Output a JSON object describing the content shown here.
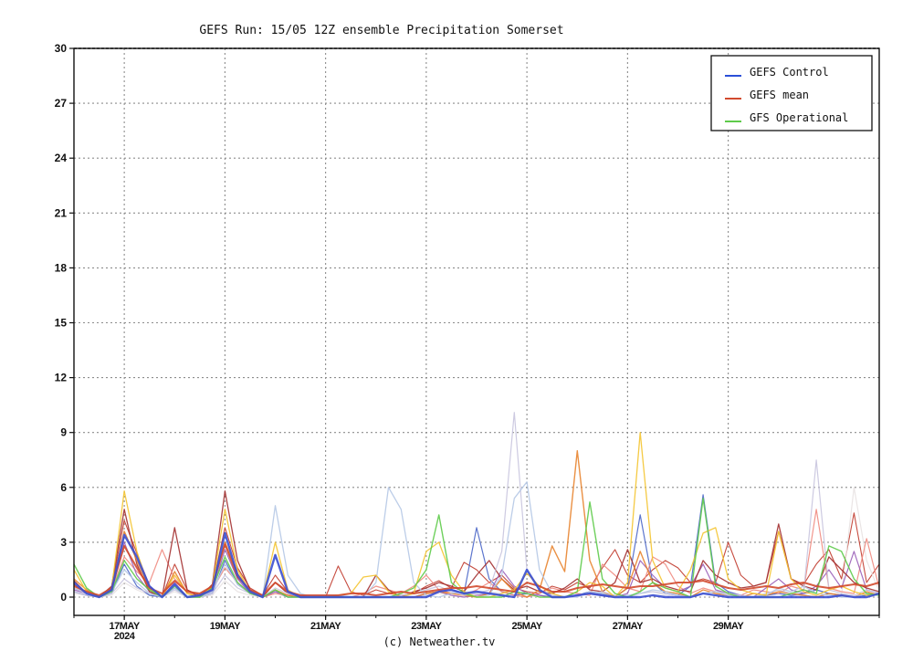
{
  "chart_data": {
    "type": "line",
    "title": "GEFS Run: 15/05 12Z ensemble Precipitation Somerset",
    "credit": "(c) Netweather.tv",
    "ylim": [
      0,
      30
    ],
    "yticks": [
      "0",
      "3",
      "6",
      "9",
      "12",
      "15",
      "18",
      "21",
      "24",
      "27",
      "30"
    ],
    "xlim": [
      -1,
      15
    ],
    "xticks": [
      {
        "x": 0,
        "label": "17MAY",
        "sublabel": "2024"
      },
      {
        "x": 2,
        "label": "19MAY",
        "sublabel": ""
      },
      {
        "x": 4,
        "label": "21MAY",
        "sublabel": ""
      },
      {
        "x": 6,
        "label": "23MAY",
        "sublabel": ""
      },
      {
        "x": 8,
        "label": "25MAY",
        "sublabel": ""
      },
      {
        "x": 10,
        "label": "27MAY",
        "sublabel": ""
      },
      {
        "x": 12,
        "label": "29MAY",
        "sublabel": ""
      }
    ],
    "grid": true,
    "legend_position": "top-right",
    "legend": [
      {
        "name": "GEFS Control",
        "color": "#2b4fd8"
      },
      {
        "name": "GEFS mean",
        "color": "#d24a2e"
      },
      {
        "name": "GFS Operational",
        "color": "#5ecb4a"
      }
    ],
    "x_spacing_days": 0.25,
    "series": [
      {
        "color": "#3b4fd0",
        "width": 2.4,
        "values": [
          0.8,
          0.2,
          0,
          0.4,
          3.4,
          2.2,
          0.6,
          0,
          0.7,
          0,
          0.1,
          0.4,
          3.5,
          1.2,
          0.3,
          0,
          2.3,
          0.3,
          0,
          0,
          0,
          0,
          0,
          0,
          0,
          0,
          0,
          0,
          0,
          0.3,
          0.4,
          0.2,
          0.3,
          0.2,
          0.1,
          0,
          1.5,
          0.4,
          0,
          0,
          0.1,
          0.2,
          0.1,
          0,
          0,
          0,
          0.1,
          0,
          0,
          0,
          0.2,
          0.1,
          0,
          0,
          0,
          0,
          0,
          0,
          0,
          0,
          0,
          0.1,
          0,
          0,
          0.2
        ]
      },
      {
        "color": "#d24a2e",
        "width": 2.0,
        "values": [
          0.6,
          0.3,
          0.1,
          0.5,
          2.8,
          1.6,
          0.5,
          0.2,
          0.9,
          0.3,
          0.2,
          0.6,
          2.9,
          1.1,
          0.4,
          0.1,
          0.8,
          0.3,
          0.1,
          0.1,
          0.1,
          0.1,
          0.2,
          0.2,
          0.1,
          0.2,
          0.3,
          0.2,
          0.3,
          0.4,
          0.5,
          0.5,
          0.6,
          0.5,
          0.4,
          0.3,
          0.8,
          0.6,
          0.3,
          0.3,
          0.5,
          0.6,
          0.7,
          0.6,
          0.5,
          0.6,
          0.6,
          0.7,
          0.8,
          0.8,
          0.9,
          0.7,
          0.5,
          0.4,
          0.5,
          0.6,
          0.5,
          0.7,
          0.8,
          0.6,
          0.5,
          0.6,
          0.7,
          0.6,
          0.8
        ]
      },
      {
        "color": "#5ecb4a",
        "width": 1.4,
        "values": [
          1.8,
          0.5,
          0,
          0.3,
          2.0,
          1.0,
          0.4,
          0,
          0.6,
          0,
          0,
          0.5,
          2.2,
          0.8,
          0.2,
          0,
          0.4,
          0,
          0,
          0,
          0,
          0,
          0,
          0,
          0,
          0,
          0.2,
          0.5,
          1.5,
          4.5,
          0.8,
          0.2,
          0,
          0,
          0,
          0.3,
          0.2,
          0,
          0,
          0,
          0.3,
          5.2,
          1.0,
          0.2,
          0,
          0.3,
          0.8,
          0.5,
          0.3,
          0,
          5.4,
          0.6,
          0.2,
          0,
          0,
          0,
          0,
          0.2,
          0.4,
          0.2,
          2.8,
          2.5,
          1.0,
          0.2,
          0.1
        ]
      },
      {
        "color": "#f4c430",
        "width": 1.3,
        "values": [
          1.5,
          0.3,
          0,
          0.5,
          5.8,
          2.5,
          0.4,
          0,
          1.2,
          0.2,
          0,
          0.6,
          4.8,
          1.5,
          0.3,
          0,
          3.0,
          0.4,
          0,
          0,
          0,
          0.1,
          0.2,
          1.1,
          1.2,
          0.3,
          0,
          0.2,
          2.5,
          3.0,
          1.2,
          0.3,
          0,
          0,
          0.2,
          0.4,
          1.3,
          0.6,
          0.2,
          0,
          0.3,
          0.8,
          0.6,
          0,
          0.8,
          9.0,
          2.0,
          0.5,
          0.3,
          1.5,
          3.5,
          3.8,
          1.0,
          0.4,
          0.2,
          0.1,
          3.6,
          1.0,
          0.3,
          0.1,
          0.4,
          0.6,
          0.3,
          0.1,
          0.2
        ]
      },
      {
        "color": "#b5c8e6",
        "width": 1.3,
        "values": [
          0.5,
          0.2,
          0,
          0.3,
          1.5,
          0.8,
          0.2,
          0,
          0.5,
          0,
          0,
          0.3,
          1.8,
          0.7,
          0.2,
          0,
          5.0,
          1.2,
          0.2,
          0,
          0,
          0.1,
          0,
          0,
          0.8,
          6.0,
          4.8,
          0.8,
          0.1,
          0,
          0.2,
          0.3,
          0,
          0.1,
          1.2,
          5.4,
          6.3,
          1.5,
          0.2,
          0,
          0,
          0.3,
          0.2,
          0,
          0.1,
          0.2,
          0.4,
          0.3,
          0.1,
          0,
          0.2,
          0.3,
          0.1,
          0,
          0,
          0.1,
          0.5,
          0.3,
          0.6,
          0.2,
          0.1,
          0,
          0,
          0.2,
          0.1
        ]
      },
      {
        "color": "#c8c4de",
        "width": 1.2,
        "values": [
          0.3,
          0.1,
          0,
          0.2,
          1.0,
          0.5,
          0.2,
          0,
          0.4,
          0,
          0,
          0.2,
          1.2,
          0.5,
          0.2,
          0,
          0.5,
          0.2,
          0,
          0,
          0,
          0,
          0,
          0,
          0,
          0,
          0.1,
          0.2,
          0.4,
          0.6,
          0.3,
          0.1,
          0.2,
          0.4,
          2.5,
          10.1,
          1.5,
          0.4,
          0.1,
          0,
          0.1,
          0.2,
          0.3,
          0.1,
          0,
          0.2,
          0.3,
          0.2,
          0.1,
          0,
          0.2,
          0.3,
          0.2,
          0.1,
          0,
          0.2,
          0.4,
          0.2,
          0.3,
          7.5,
          0.4,
          0.2,
          0.1,
          0.4,
          0.2
        ]
      },
      {
        "color": "#e8842f",
        "width": 1.4,
        "values": [
          1.0,
          0.4,
          0,
          0.4,
          3.6,
          2.0,
          0.5,
          0,
          1.4,
          0.2,
          0,
          0.5,
          3.0,
          1.3,
          0.3,
          0,
          0.4,
          0.1,
          0,
          0,
          0,
          0,
          0,
          0,
          0,
          0,
          0,
          0,
          0.2,
          0.3,
          0.2,
          0.1,
          0,
          0.2,
          1.0,
          0.3,
          0,
          0.4,
          2.8,
          1.4,
          8.0,
          2.0,
          0.3,
          0,
          0.5,
          2.5,
          0.8,
          0.3,
          0.2,
          0,
          0.4,
          0.2,
          0.1,
          0,
          0.2,
          0.1,
          0.3,
          0.2,
          0.1,
          0,
          0.2,
          0.1,
          0,
          0.3,
          0.1
        ]
      },
      {
        "color": "#a33030",
        "width": 1.3,
        "values": [
          0.9,
          0.2,
          0,
          0.6,
          4.8,
          1.8,
          0.3,
          0,
          3.8,
          0.4,
          0,
          0.7,
          5.8,
          2.0,
          0.4,
          0,
          0.8,
          0.2,
          0,
          0,
          0,
          0,
          0,
          0,
          1.2,
          0.4,
          0,
          0.3,
          0.5,
          0.8,
          0.6,
          0.3,
          1.2,
          2.0,
          1.0,
          0.4,
          0.6,
          0.3,
          0.2,
          0.5,
          1.0,
          0.4,
          0.3,
          0.8,
          2.6,
          0.8,
          1.0,
          0.6,
          0.4,
          0.3,
          2.0,
          1.2,
          0.8,
          0.5,
          0.6,
          0.8,
          4.0,
          1.0,
          0.6,
          0.4,
          2.2,
          1.5,
          0.8,
          0.5,
          0.3
        ]
      },
      {
        "color": "#9a5fb8",
        "width": 1.2,
        "values": [
          0.4,
          0.2,
          0,
          0.3,
          3.0,
          1.2,
          0.3,
          0,
          0.8,
          0,
          0,
          0.3,
          2.6,
          1.0,
          0.2,
          0,
          0.3,
          0.1,
          0,
          0,
          0,
          0,
          0,
          0,
          0,
          0,
          0,
          0,
          0.2,
          0.3,
          0.1,
          0,
          0.1,
          0.2,
          1.5,
          0.6,
          0.2,
          0.1,
          0,
          0,
          0.1,
          0.2,
          0.1,
          0,
          0.2,
          2.0,
          1.2,
          0.5,
          0.3,
          0.6,
          1.8,
          0.4,
          0.2,
          0.1,
          0,
          0.5,
          1.0,
          0.4,
          0.2,
          0.6,
          1.5,
          0.5,
          2.5,
          0.4,
          0.2
        ]
      },
      {
        "color": "#f08a80",
        "width": 1.2,
        "values": [
          0.5,
          0.2,
          0,
          0.4,
          2.2,
          1.4,
          0.8,
          2.6,
          1.0,
          0.3,
          0,
          0.4,
          1.6,
          0.8,
          0.2,
          0,
          0.2,
          0.1,
          0,
          0,
          0,
          0,
          0,
          0.2,
          0.6,
          0.4,
          0.2,
          0.6,
          1.2,
          0.4,
          0.2,
          0.1,
          0.4,
          0.8,
          0.3,
          0.1,
          0,
          0.2,
          0.5,
          0.3,
          0.2,
          0.1,
          1.8,
          1.2,
          0.5,
          0.3,
          2.2,
          1.8,
          0.6,
          0.2,
          0.5,
          0.3,
          0.2,
          0.1,
          0.4,
          0.3,
          0.2,
          0.6,
          0.4,
          4.8,
          0.5,
          0.3,
          0.2,
          3.2,
          0.5
        ]
      },
      {
        "color": "#4a66c8",
        "width": 1.2,
        "values": [
          0.3,
          0.1,
          0,
          0.2,
          1.8,
          0.6,
          0.1,
          0,
          0.5,
          0,
          0,
          0.2,
          2.0,
          0.7,
          0.2,
          0,
          0.3,
          0,
          0,
          0,
          0,
          0,
          0,
          0,
          0,
          0,
          0,
          0,
          0.2,
          0.3,
          0.4,
          0.2,
          3.8,
          1.0,
          0.3,
          0.1,
          0.2,
          0.1,
          0,
          0,
          0.1,
          0.3,
          0.2,
          0,
          0.5,
          4.5,
          0.8,
          0.2,
          0.1,
          0.6,
          5.6,
          0.8,
          0.3,
          0.1,
          0,
          0.1,
          0.2,
          0.1,
          0.2,
          0.4,
          0.2,
          0.1,
          0,
          0.1,
          0.2
        ]
      },
      {
        "color": "#e8e2e2",
        "width": 1.2,
        "values": [
          0.2,
          0.1,
          0,
          0.1,
          0.8,
          0.4,
          0.1,
          0,
          0.3,
          0,
          0,
          0.1,
          0.9,
          0.3,
          0.1,
          0,
          0.2,
          0,
          0,
          0,
          0,
          0,
          0,
          0,
          0,
          0,
          0,
          0,
          0.1,
          0.2,
          0.1,
          0,
          0.1,
          0.2,
          0.3,
          0.2,
          0.1,
          0,
          0,
          0,
          0.1,
          0.2,
          0.1,
          0,
          0.1,
          0.2,
          0.3,
          0.1,
          0,
          0,
          0.2,
          0.3,
          0.2,
          0,
          0,
          0.1,
          0.2,
          0.1,
          0.1,
          0.4,
          0.2,
          0.1,
          6.0,
          2.0,
          0.3
        ]
      },
      {
        "color": "#c0392b",
        "width": 1.1,
        "values": [
          0.7,
          0.2,
          0,
          0.5,
          4.2,
          2.4,
          0.6,
          0,
          1.8,
          0.4,
          0.1,
          0.6,
          3.8,
          1.6,
          0.5,
          0.1,
          1.2,
          0.3,
          0.1,
          0,
          0,
          1.7,
          0.3,
          0.1,
          0.4,
          0.2,
          0.1,
          0.2,
          0.6,
          0.9,
          0.5,
          1.9,
          1.5,
          0.8,
          1.2,
          0.5,
          0.3,
          0.2,
          0.6,
          0.4,
          0.8,
          0.5,
          1.6,
          2.6,
          1.2,
          0.8,
          1.5,
          2.0,
          1.6,
          0.8,
          1.0,
          0.8,
          3.0,
          1.2,
          0.6,
          0.8,
          3.6,
          1.0,
          0.7,
          1.8,
          2.6,
          1.0,
          4.6,
          0.8,
          1.8
        ]
      }
    ]
  }
}
